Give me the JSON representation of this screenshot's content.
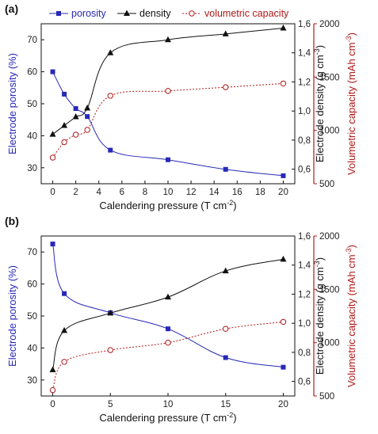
{
  "chart_data": [
    {
      "panel_label": "(a)",
      "type": "scatter",
      "x_ticks": [
        "0",
        "2",
        "4",
        "6",
        "8",
        "10",
        "12",
        "14",
        "16",
        "18",
        "20"
      ],
      "xlabel": "Calendering pressure (T cm",
      "xlabel_sup": "-2",
      "xlabel_end": ")",
      "xlim": [
        -1,
        21
      ],
      "y_left": {
        "label": "Electrode porosity (%)",
        "lim": [
          25,
          75
        ],
        "ticks": [
          "30",
          "40",
          "50",
          "60",
          "70"
        ],
        "color": "#2828b8"
      },
      "y_mid": {
        "label_pre": "Electrode density (g cm",
        "label_sup": "-3",
        "label_end": ")",
        "lim": [
          0.5,
          1.6
        ],
        "ticks": [
          "0,6",
          "0,8",
          "1,0",
          "1,2",
          "1,4",
          "1,6"
        ],
        "color": "#111111"
      },
      "y_right": {
        "label_pre": "Volumetric capacity (mAh cm",
        "label_sup": "-3",
        "label_end": ")",
        "lim": [
          500,
          2000
        ],
        "ticks": [
          "500",
          "1000",
          "1500",
          "2000"
        ],
        "color": "#b01818"
      },
      "legend": {
        "position": "top",
        "entries": [
          "porosity",
          "density",
          "volumetric capacity"
        ]
      },
      "series": [
        {
          "name": "porosity",
          "axis": "left",
          "marker": "square",
          "color": "#2828b8",
          "line": "solid",
          "x": [
            0,
            1,
            2,
            3,
            5,
            10,
            15,
            20
          ],
          "y": [
            60,
            53,
            48.5,
            46,
            35.5,
            32.5,
            29.5,
            27.5
          ]
        },
        {
          "name": "density",
          "axis": "mid",
          "marker": "triangle",
          "color": "#111111",
          "line": "solid",
          "x": [
            0,
            1,
            2,
            3,
            5,
            10,
            15,
            20
          ],
          "y": [
            0.84,
            0.9,
            0.96,
            1.02,
            1.4,
            1.49,
            1.53,
            1.57
          ]
        },
        {
          "name": "volumetric capacity",
          "axis": "right",
          "marker": "open-circle",
          "color": "#b01818",
          "line": "dotted",
          "x": [
            0,
            1,
            2,
            3,
            5,
            10,
            15,
            20
          ],
          "y": [
            745,
            890,
            960,
            1005,
            1325,
            1370,
            1405,
            1440
          ]
        }
      ]
    },
    {
      "panel_label": "(b)",
      "type": "scatter",
      "x_ticks": [
        "0",
        "5",
        "10",
        "15",
        "20"
      ],
      "xlabel": "Calendering pressure (T cm",
      "xlabel_sup": "-2",
      "xlabel_end": ")",
      "xlim": [
        -1,
        21
      ],
      "y_left": {
        "label": "Electrode porosity (%)",
        "lim": [
          25,
          75
        ],
        "ticks": [
          "30",
          "40",
          "50",
          "60",
          "70"
        ],
        "color": "#2828b8"
      },
      "y_mid": {
        "label_pre": "Electrode density (g cm",
        "label_sup": "-3",
        "label_end": ")",
        "lim": [
          0.5,
          1.6
        ],
        "ticks": [
          "0,6",
          "0,8",
          "1,0",
          "1,2",
          "1,4",
          "1,6"
        ],
        "color": "#111111"
      },
      "y_right": {
        "label_pre": "Volumetric capacity (mAh cm",
        "label_sup": "-3",
        "label_end": ")",
        "lim": [
          500,
          2000
        ],
        "ticks": [
          "500",
          "1000",
          "1500",
          "2000"
        ],
        "color": "#b01818"
      },
      "series": [
        {
          "name": "porosity",
          "axis": "left",
          "marker": "square",
          "color": "#2828b8",
          "line": "solid",
          "x": [
            0,
            1,
            5,
            10,
            15,
            20
          ],
          "y": [
            72.5,
            57,
            51,
            46,
            37,
            34
          ]
        },
        {
          "name": "density",
          "axis": "mid",
          "marker": "triangle",
          "color": "#111111",
          "line": "solid",
          "x": [
            0,
            1,
            5,
            10,
            15,
            20
          ],
          "y": [
            0.68,
            0.95,
            1.07,
            1.18,
            1.36,
            1.44
          ]
        },
        {
          "name": "volumetric capacity",
          "axis": "right",
          "marker": "open-circle",
          "color": "#b01818",
          "line": "dotted",
          "x": [
            0,
            1,
            5,
            10,
            15,
            20
          ],
          "y": [
            555,
            820,
            930,
            1000,
            1130,
            1195
          ]
        }
      ]
    }
  ]
}
